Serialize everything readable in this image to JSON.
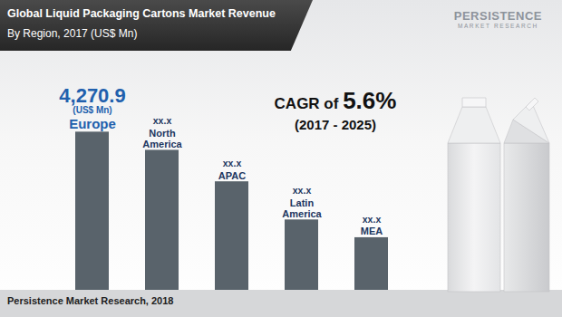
{
  "chart_data": {
    "type": "bar",
    "title": "Global Liquid Packaging Cartons Market Revenue",
    "subtitle": "By Region, 2017 (US$ Mn)",
    "categories": [
      "Europe",
      "North America",
      "APAC",
      "Latin America",
      "MEA"
    ],
    "values": [
      4270.9,
      3780,
      2930,
      1900,
      1420
    ],
    "value_labels": [
      "4,270.9",
      "xx.x",
      "xx.x",
      "xx.x",
      "xx.x"
    ],
    "value_unit_label": "(US$ Mn)",
    "color": "#59636b",
    "ylim": [
      0,
      4500
    ],
    "data_labels": true,
    "tick_labels": false,
    "grid": false,
    "annotations": [
      "CAGR of 5.6%",
      "(2017 - 2025)"
    ],
    "source": "Persistence Market Research, 2018",
    "logo": [
      "PERSISTENCE",
      "MARKET RESEARCH"
    ]
  }
}
